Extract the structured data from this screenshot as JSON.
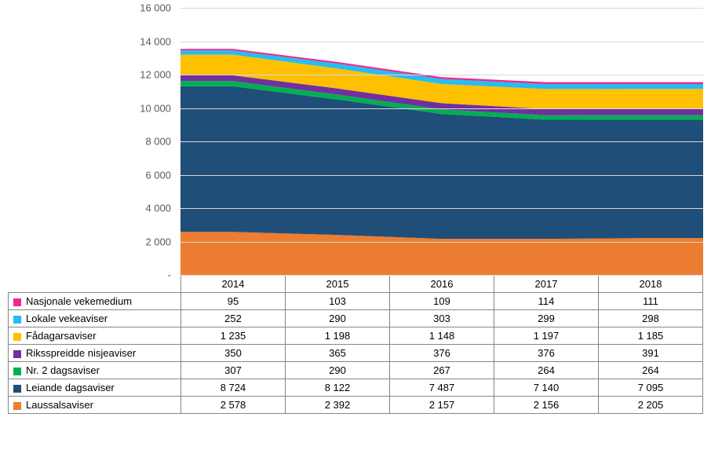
{
  "chart": {
    "type": "stacked-area",
    "ymax": 16000,
    "ytick_step": 2000,
    "yticks": [
      "-",
      "2 000",
      "4 000",
      "6 000",
      "8 000",
      "10 000",
      "12 000",
      "14 000",
      "16 000"
    ],
    "categories": [
      "2014",
      "2015",
      "2016",
      "2017",
      "2018"
    ],
    "background_color": "#ffffff",
    "grid_color": "#d9d9d9",
    "text_color": "#595959",
    "label_fontsize": 13,
    "series_order_bottom_to_top": [
      "laussals",
      "leiande",
      "nr2",
      "rikssp",
      "fadagar",
      "lokale",
      "nasjonale"
    ],
    "series": {
      "nasjonale": {
        "label": "Nasjonale vekemedium",
        "color": "#ed2891",
        "values": [
          95,
          103,
          109,
          114,
          111
        ]
      },
      "lokale": {
        "label": "Lokale vekeaviser",
        "color": "#27bdee",
        "values": [
          252,
          290,
          303,
          299,
          298
        ]
      },
      "fadagar": {
        "label": "Fådagarsaviser",
        "color": "#ffc000",
        "values": [
          1235,
          1198,
          1148,
          1197,
          1185
        ]
      },
      "rikssp": {
        "label": "Riksspreidde nisjeaviser",
        "color": "#7030a0",
        "values": [
          350,
          365,
          376,
          376,
          391
        ]
      },
      "nr2": {
        "label": "Nr. 2 dagsaviser",
        "color": "#00b050",
        "values": [
          307,
          290,
          267,
          264,
          264
        ]
      },
      "leiande": {
        "label": "Leiande dagsaviser",
        "color": "#1f4e79",
        "values": [
          8724,
          8122,
          7487,
          7140,
          7095
        ]
      },
      "laussals": {
        "label": "Laussalsaviser",
        "color": "#ed7d31",
        "values": [
          2578,
          2392,
          2157,
          2156,
          2205
        ]
      }
    },
    "table_order_top_to_bottom": [
      "nasjonale",
      "lokale",
      "fadagar",
      "rikssp",
      "nr2",
      "leiande",
      "laussals"
    ],
    "table_values_formatted": {
      "nasjonale": [
        "95",
        "103",
        "109",
        "114",
        "111"
      ],
      "lokale": [
        "252",
        "290",
        "303",
        "299",
        "298"
      ],
      "fadagar": [
        "1 235",
        "1 198",
        "1 148",
        "1 197",
        "1 185"
      ],
      "rikssp": [
        "350",
        "365",
        "376",
        "376",
        "391"
      ],
      "nr2": [
        "307",
        "290",
        "267",
        "264",
        "264"
      ],
      "leiande": [
        "8 724",
        "8 122",
        "7 487",
        "7 140",
        "7 095"
      ],
      "laussals": [
        "2 578",
        "2 392",
        "2 157",
        "2 156",
        "2 205"
      ]
    }
  }
}
